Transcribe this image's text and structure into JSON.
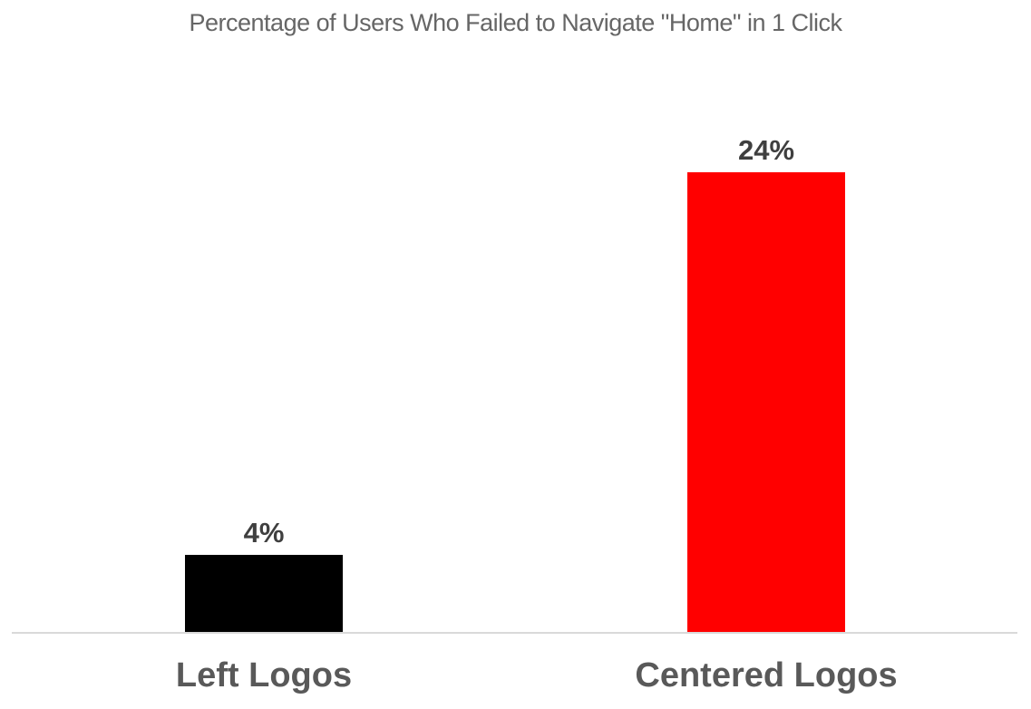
{
  "chart_data": {
    "type": "bar",
    "title": "Percentage of Users Who Failed to Navigate \"Home\" in 1 Click",
    "categories": [
      "Left Logos",
      "Centered Logos"
    ],
    "values": [
      4,
      24
    ],
    "value_labels": [
      "4%",
      "24%"
    ],
    "bar_colors": [
      "#000000",
      "#FF0000"
    ],
    "xlabel": "",
    "ylabel": "",
    "ylim": [
      0,
      24
    ],
    "grid": false,
    "legend": false,
    "y_axis_visible": false,
    "baseline_visible": true
  },
  "colors": {
    "background": "#FFFFFF",
    "title_text": "#666666",
    "value_label_text": "#3F3F3F",
    "category_label_text": "#595959",
    "axis_line": "#D9D9D9"
  }
}
